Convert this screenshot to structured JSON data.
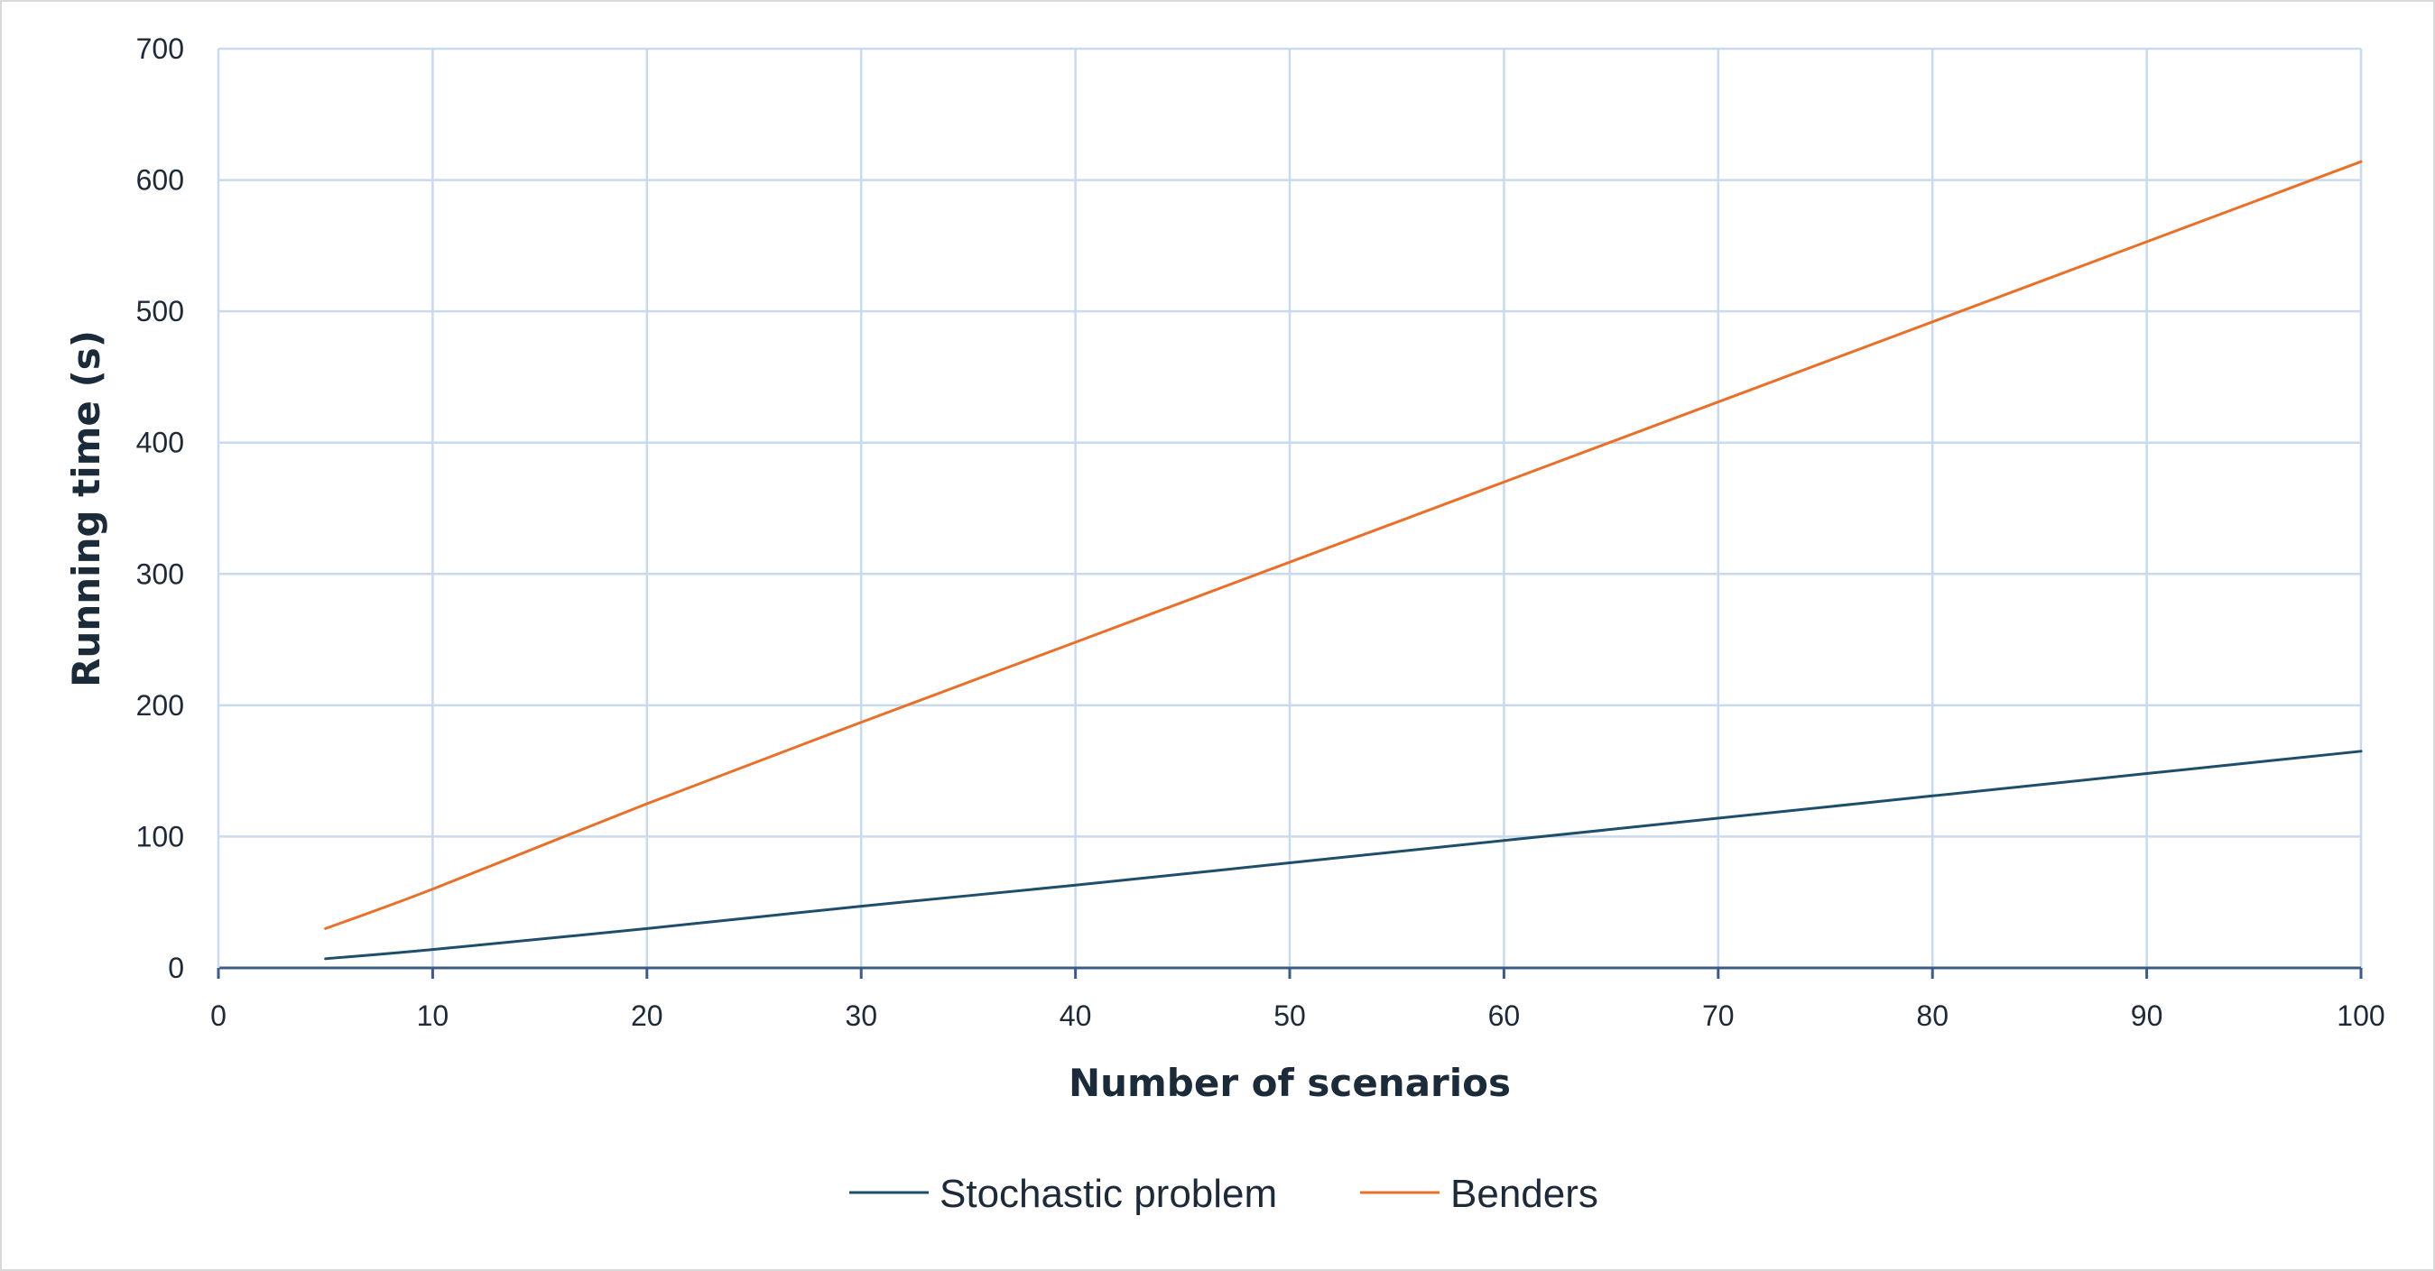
{
  "chart_data": {
    "type": "line",
    "title": "",
    "xlabel": "Number of scenarios",
    "ylabel": "Running time (s)",
    "xlim": [
      0,
      100
    ],
    "ylim": [
      0,
      700
    ],
    "x_ticks": [
      "0",
      "10",
      "20",
      "30",
      "40",
      "50",
      "60",
      "70",
      "80",
      "90",
      "100"
    ],
    "y_ticks": [
      "0",
      "100",
      "200",
      "300",
      "400",
      "500",
      "600",
      "700"
    ],
    "grid": true,
    "legend_position": "bottom",
    "series": [
      {
        "name": "Stochastic problem",
        "color": "#1f4e6b",
        "x": [
          5,
          10,
          20,
          30,
          40,
          50,
          60,
          70,
          80,
          90,
          100
        ],
        "y": [
          7,
          14,
          30,
          47,
          63,
          80,
          97,
          114,
          131,
          148,
          165
        ]
      },
      {
        "name": "Benders",
        "color": "#e8702a",
        "x": [
          5,
          10,
          20,
          30,
          40,
          50,
          60,
          70,
          80,
          90,
          100
        ],
        "y": [
          30,
          60,
          125,
          187,
          248,
          309,
          370,
          431,
          492,
          553,
          614
        ]
      }
    ]
  }
}
